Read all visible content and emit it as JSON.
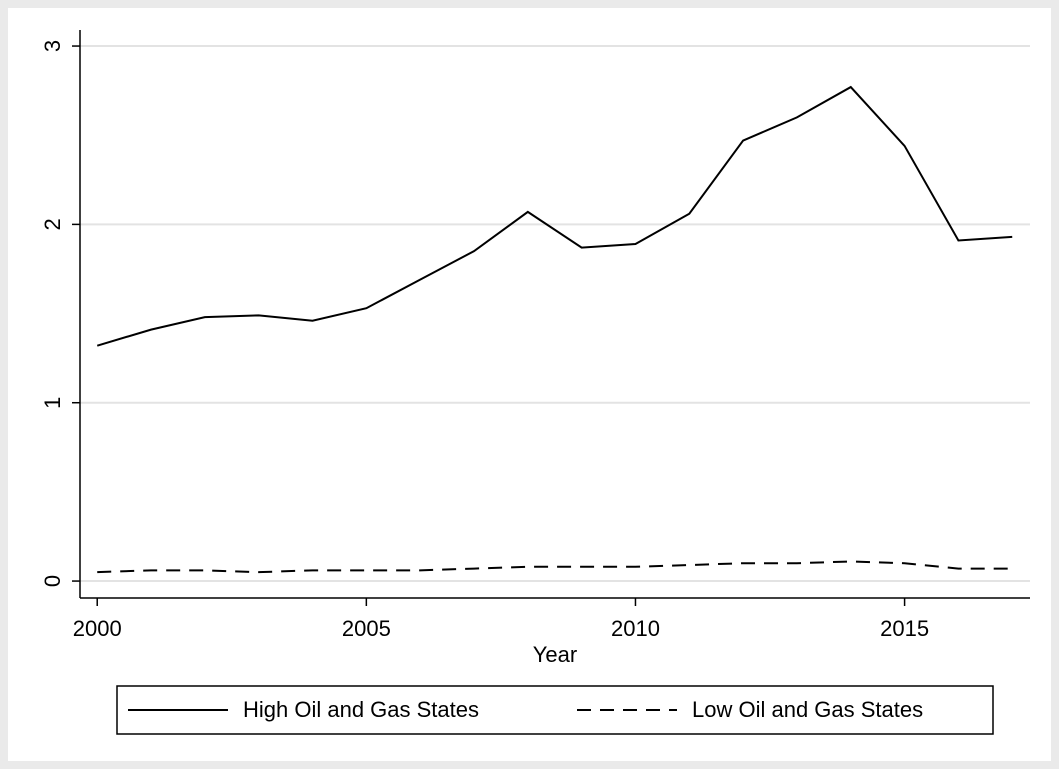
{
  "chart_data": {
    "type": "line",
    "x_label": "Year",
    "x": [
      2000,
      2001,
      2002,
      2003,
      2004,
      2005,
      2006,
      2007,
      2008,
      2009,
      2010,
      2011,
      2012,
      2013,
      2014,
      2015,
      2016,
      2017
    ],
    "series": [
      {
        "name": "High Oil and Gas States",
        "color": "#000000",
        "dash": "solid",
        "values": [
          1.32,
          1.41,
          1.48,
          1.49,
          1.46,
          1.53,
          1.69,
          1.85,
          2.07,
          1.87,
          1.89,
          2.06,
          2.47,
          2.6,
          2.77,
          2.44,
          1.91,
          1.93
        ]
      },
      {
        "name": "Low Oil and Gas States",
        "color": "#000000",
        "dash": "dashed",
        "values": [
          0.05,
          0.06,
          0.06,
          0.05,
          0.06,
          0.06,
          0.06,
          0.07,
          0.08,
          0.08,
          0.08,
          0.09,
          0.1,
          0.1,
          0.11,
          0.1,
          0.07,
          0.07
        ]
      }
    ],
    "xlim": [
      1999.68,
      2017.33
    ],
    "xticks": [
      2000,
      2005,
      2010,
      2015
    ],
    "ylim": [
      -0.095,
      3.09
    ],
    "yticks": [
      0,
      1,
      2,
      3
    ],
    "grid": true,
    "legend": "bottom"
  }
}
